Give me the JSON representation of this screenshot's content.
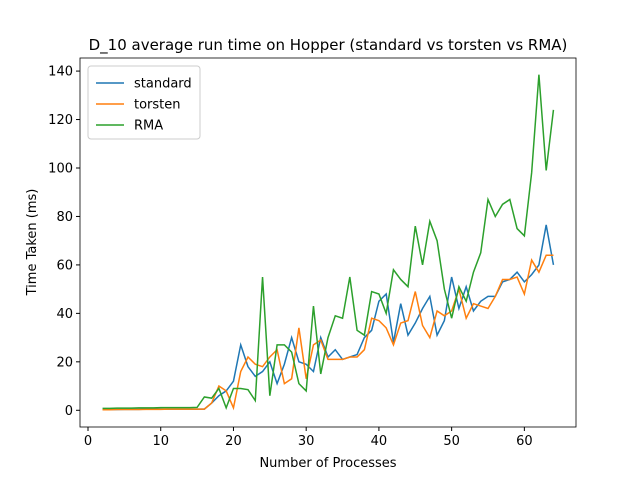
{
  "chart_data": {
    "type": "line",
    "title": "D_10 average run time on Hopper (standard vs torsten vs RMA)",
    "x_label": "Number of Processes",
    "y_label": "Time Taken (ms)",
    "x": [
      2,
      3,
      4,
      5,
      6,
      7,
      8,
      9,
      10,
      11,
      12,
      13,
      14,
      15,
      16,
      17,
      18,
      19,
      20,
      21,
      22,
      23,
      24,
      25,
      26,
      27,
      28,
      29,
      30,
      31,
      32,
      33,
      34,
      35,
      36,
      37,
      38,
      39,
      40,
      41,
      42,
      43,
      44,
      45,
      46,
      47,
      48,
      49,
      50,
      51,
      52,
      53,
      54,
      55,
      56,
      57,
      58,
      59,
      60,
      61,
      62,
      63,
      64
    ],
    "series": [
      {
        "name": "standard",
        "color": "#1f77b4",
        "values": [
          0.3,
          0.3,
          0.3,
          0.4,
          0.4,
          0.4,
          0.5,
          0.5,
          0.5,
          0.5,
          0.5,
          0.5,
          0.5,
          0.5,
          0.5,
          3,
          6,
          8,
          12,
          27,
          18,
          14,
          16,
          20,
          11,
          19,
          30,
          20,
          19,
          16,
          30,
          22,
          25,
          21,
          22,
          23,
          30,
          33,
          45,
          48,
          28,
          44,
          31,
          36,
          42,
          47,
          31,
          37,
          55,
          42,
          51,
          41,
          45,
          47,
          47,
          53,
          54,
          57,
          53,
          56,
          60,
          76.5,
          60
        ]
      },
      {
        "name": "torsten",
        "color": "#ff7f0e",
        "values": [
          0.2,
          0.2,
          0.3,
          0.3,
          0.3,
          0.3,
          0.4,
          0.4,
          0.4,
          0.5,
          0.5,
          0.5,
          0.5,
          0.5,
          0.5,
          3,
          10,
          8,
          1,
          16,
          22,
          19,
          18,
          22,
          25,
          11,
          13,
          34,
          13,
          27,
          29,
          21,
          21,
          21,
          22,
          22,
          25,
          38,
          37,
          34,
          27,
          36,
          37,
          49,
          35,
          30,
          41,
          39,
          41,
          50,
          38,
          44,
          43,
          42,
          47,
          54,
          54,
          55,
          48,
          62,
          57,
          64,
          64
        ]
      },
      {
        "name": "RMA",
        "color": "#2ca02c",
        "values": [
          0.8,
          0.8,
          0.9,
          0.9,
          0.9,
          1,
          1,
          1,
          1.1,
          1.1,
          1.1,
          1.1,
          1.1,
          1.2,
          5.5,
          5,
          9,
          1,
          9,
          9,
          8.5,
          4,
          55,
          6,
          27,
          27,
          24,
          11,
          8,
          43,
          15,
          30,
          39,
          38,
          55,
          33,
          31,
          49,
          48,
          40,
          58,
          54,
          51,
          76,
          60,
          78,
          70,
          50,
          38,
          51,
          45,
          57,
          65,
          87,
          80,
          85,
          87,
          75,
          72,
          98,
          138.5,
          99,
          124
        ]
      }
    ],
    "xlim": [
      -1.1,
      67.1
    ],
    "ylim": [
      -6.9,
      145.4
    ],
    "xticks": [
      0,
      10,
      20,
      30,
      40,
      50,
      60
    ],
    "yticks": [
      0,
      20,
      40,
      60,
      80,
      100,
      120,
      140
    ],
    "grid": false,
    "legend": "upper left"
  }
}
